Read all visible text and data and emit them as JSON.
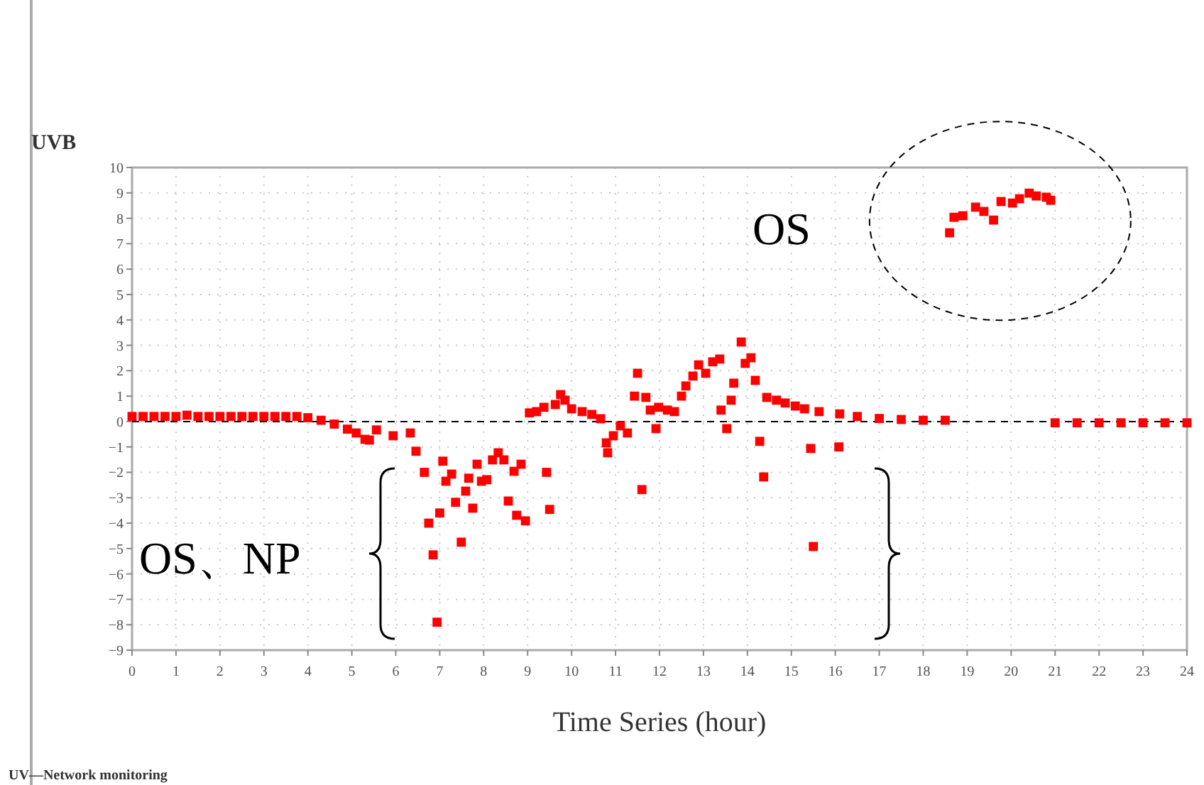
{
  "chart_data": {
    "type": "scatter",
    "xlabel": "Time Series (hour)",
    "ylabel": "UVB",
    "xlim": [
      0,
      24
    ],
    "xticks": [
      0,
      1,
      2,
      3,
      4,
      5,
      6,
      7,
      8,
      9,
      10,
      11,
      12,
      13,
      14,
      15,
      16,
      17,
      18,
      19,
      20,
      21,
      22,
      23,
      24
    ],
    "ylim": [
      -9,
      10
    ],
    "yticks": [
      -9,
      -8,
      -7,
      -6,
      -5,
      -4,
      -3,
      -2,
      -1,
      0,
      1,
      2,
      3,
      4,
      5,
      6,
      7,
      8,
      9,
      10
    ],
    "grid": true,
    "marker": "square",
    "ref_lines": [
      {
        "axis": "y",
        "value": 0,
        "label": null,
        "color": "#000000",
        "line_style": "dashed"
      }
    ],
    "annotations": [
      "OS",
      "OS、NP",
      "UV—Network monitoring"
    ],
    "series": [
      {
        "color": "#ff0000",
        "x": [
          0,
          0.25,
          0.5,
          0.75,
          1,
          1.25,
          1.5,
          1.75,
          2,
          2.25,
          2.5,
          2.75,
          3,
          3.25,
          3.5,
          3.75,
          4,
          4.3,
          4.6,
          4.9,
          5.1,
          5.3,
          5.4,
          5.56,
          5.94,
          6.33,
          6.46,
          6.65,
          6.75,
          6.85,
          6.94,
          7,
          7.07,
          7.14,
          7.27,
          7.36,
          7.49,
          7.59,
          7.66,
          7.75,
          7.85,
          7.95,
          8.07,
          8.2,
          8.33,
          8.46,
          8.56,
          8.69,
          8.75,
          8.85,
          8.95,
          9.04,
          9.2,
          9.37,
          9.43,
          9.5,
          9.63,
          9.75,
          9.85,
          10,
          10.24,
          10.46,
          10.66,
          10.79,
          10.82,
          10.95,
          11.11,
          11.27,
          11.43,
          11.5,
          11.6,
          11.69,
          11.79,
          11.92,
          11.98,
          12.18,
          12.34,
          12.5,
          12.6,
          12.76,
          12.89,
          13.05,
          13.21,
          13.37,
          13.4,
          13.53,
          13.63,
          13.69,
          13.86,
          13.95,
          14.08,
          14.18,
          14.28,
          14.37,
          14.44,
          14.66,
          14.86,
          15.09,
          15.3,
          15.44,
          15.5,
          15.63,
          16.08,
          16.1,
          16.5,
          17,
          17.5,
          18,
          18.5,
          18.6,
          18.7,
          18.9,
          19.19,
          19.38,
          19.6,
          19.77,
          20.03,
          20.19,
          20.41,
          20.57,
          20.8,
          20.9,
          21,
          21.5,
          22,
          22.5,
          23,
          23.5,
          24
        ],
        "values": [
          0.2,
          0.2,
          0.2,
          0.2,
          0.2,
          0.25,
          0.2,
          0.2,
          0.2,
          0.2,
          0.2,
          0.2,
          0.2,
          0.2,
          0.2,
          0.2,
          0.15,
          0.05,
          -0.1,
          -0.3,
          -0.45,
          -0.7,
          -0.73,
          -0.33,
          -0.56,
          -0.45,
          -1.17,
          -2,
          -4,
          -5.25,
          -7.9,
          -3.6,
          -1.56,
          -2.35,
          -2.07,
          -3.18,
          -4.75,
          -2.74,
          -2.23,
          -3.41,
          -1.68,
          -2.35,
          -2.29,
          -1.51,
          -1.23,
          -1.51,
          -3.13,
          -1.96,
          -3.69,
          -1.68,
          -3.91,
          0.34,
          0.39,
          0.56,
          -2,
          -3.46,
          0.67,
          1.06,
          0.84,
          0.5,
          0.39,
          0.28,
          0.11,
          -0.84,
          -1.23,
          -0.56,
          -0.17,
          -0.45,
          1,
          1.9,
          -2.68,
          0.95,
          0.45,
          -0.28,
          0.56,
          0.45,
          0.39,
          1,
          1.4,
          1.79,
          2.23,
          1.9,
          2.35,
          2.46,
          0.45,
          -0.28,
          0.84,
          1.51,
          3.13,
          2.29,
          2.51,
          1.62,
          -0.78,
          -2.18,
          0.95,
          0.84,
          0.73,
          0.61,
          0.5,
          -1.06,
          -4.92,
          0.39,
          -1,
          0.3,
          0.2,
          0.12,
          0.08,
          0.05,
          0.05,
          7.43,
          8.04,
          8.1,
          8.44,
          8.27,
          7.93,
          8.66,
          8.6,
          8.77,
          8.99,
          8.88,
          8.83,
          8.71,
          -0.05,
          -0.05,
          -0.05,
          -0.05,
          -0.05,
          -0.05,
          -0.05
        ]
      }
    ]
  }
}
